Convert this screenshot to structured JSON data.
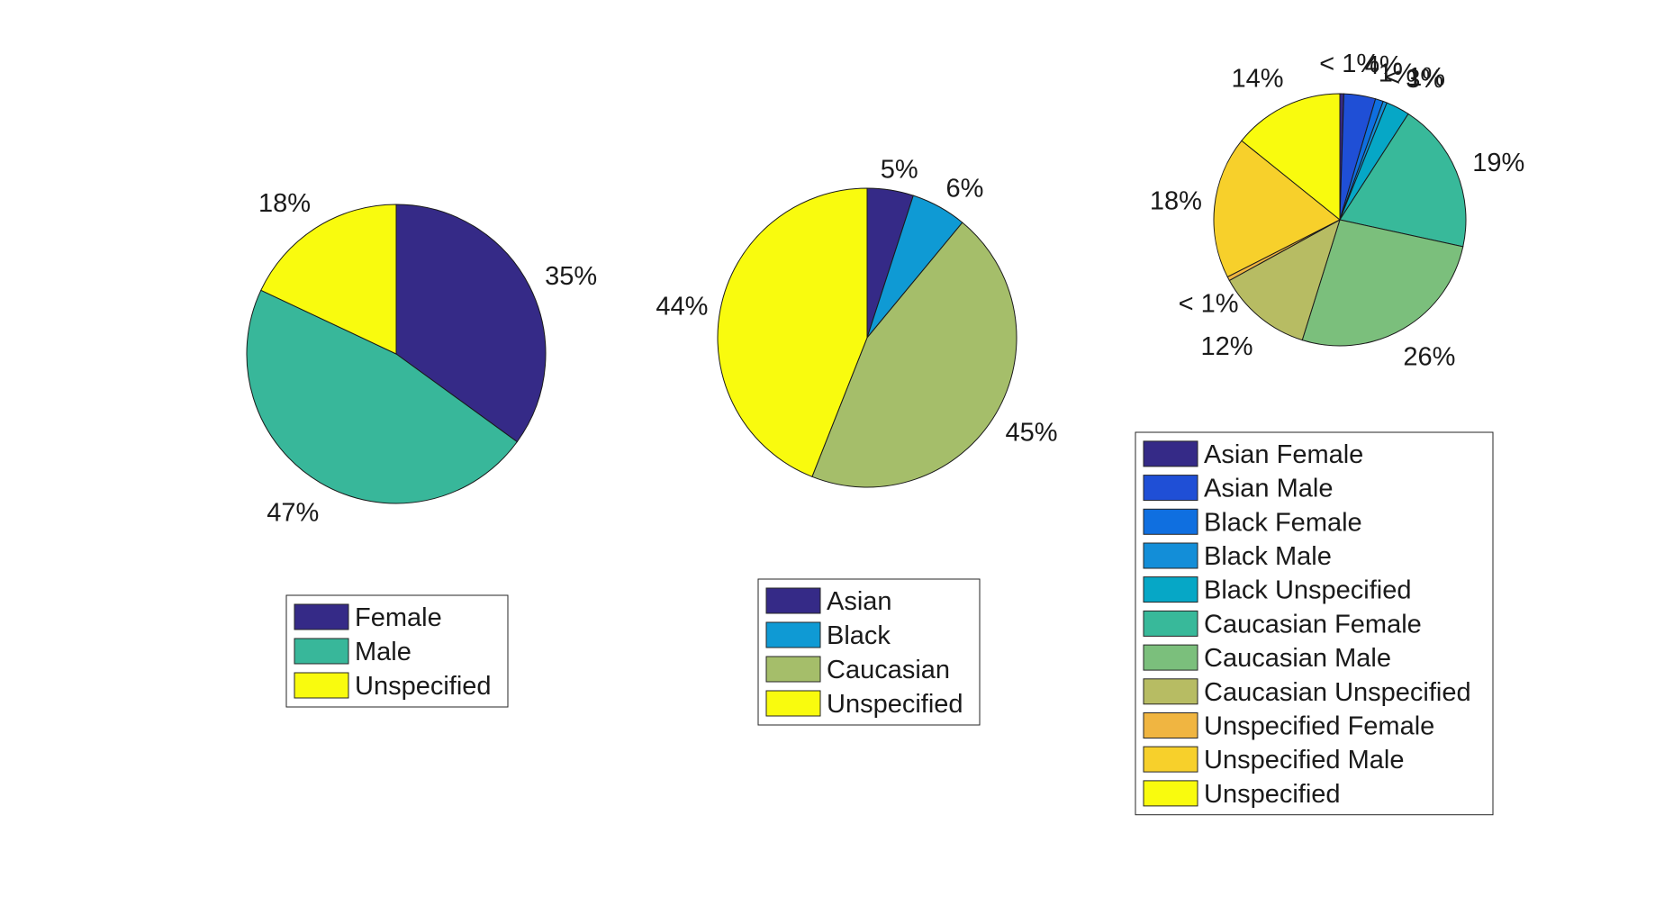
{
  "chart_data": [
    {
      "type": "pie",
      "series": [
        {
          "name": "Female",
          "value": 35,
          "label": "35%",
          "color": "#352A87"
        },
        {
          "name": "Male",
          "value": 47,
          "label": "47%",
          "color": "#38B79A"
        },
        {
          "name": "Unspecified",
          "value": 18,
          "label": "18%",
          "color": "#F9FB0E"
        }
      ],
      "legend_location": "south"
    },
    {
      "type": "pie",
      "series": [
        {
          "name": "Asian",
          "value": 5,
          "label": "5%",
          "color": "#352A87"
        },
        {
          "name": "Black",
          "value": 6,
          "label": "6%",
          "color": "#0F9AD4"
        },
        {
          "name": "Caucasian",
          "value": 45,
          "label": "45%",
          "color": "#A5BE6A"
        },
        {
          "name": "Unspecified",
          "value": 44,
          "label": "44%",
          "color": "#F9FB0E"
        }
      ],
      "legend_location": "south"
    },
    {
      "type": "pie",
      "series": [
        {
          "name": "Asian Female",
          "value": 0.5,
          "label": "< 1%",
          "color": "#352A87"
        },
        {
          "name": "Asian Male",
          "value": 4,
          "label": "4%",
          "color": "#1F4FD6"
        },
        {
          "name": "Black Female",
          "value": 1,
          "label": "1%",
          "color": "#0F6FE0"
        },
        {
          "name": "Black Male",
          "value": 0.5,
          "label": "< 1%",
          "color": "#138ED8"
        },
        {
          "name": "Black Unspecified",
          "value": 3,
          "label": "3%",
          "color": "#06A7C6"
        },
        {
          "name": "Caucasian Female",
          "value": 19,
          "label": "19%",
          "color": "#38B99A"
        },
        {
          "name": "Caucasian Male",
          "value": 26,
          "label": "26%",
          "color": "#7BBF7C"
        },
        {
          "name": "Caucasian Unspecified",
          "value": 12,
          "label": "12%",
          "color": "#B7BC63"
        },
        {
          "name": "Unspecified Female",
          "value": 0.5,
          "label": "< 1%",
          "color": "#F0B541"
        },
        {
          "name": "Unspecified Male",
          "value": 18,
          "label": "18%",
          "color": "#F7D02B"
        },
        {
          "name": "Unspecified",
          "value": 14,
          "label": "14%",
          "color": "#F9FB0E"
        }
      ],
      "legend_location": "south"
    }
  ]
}
